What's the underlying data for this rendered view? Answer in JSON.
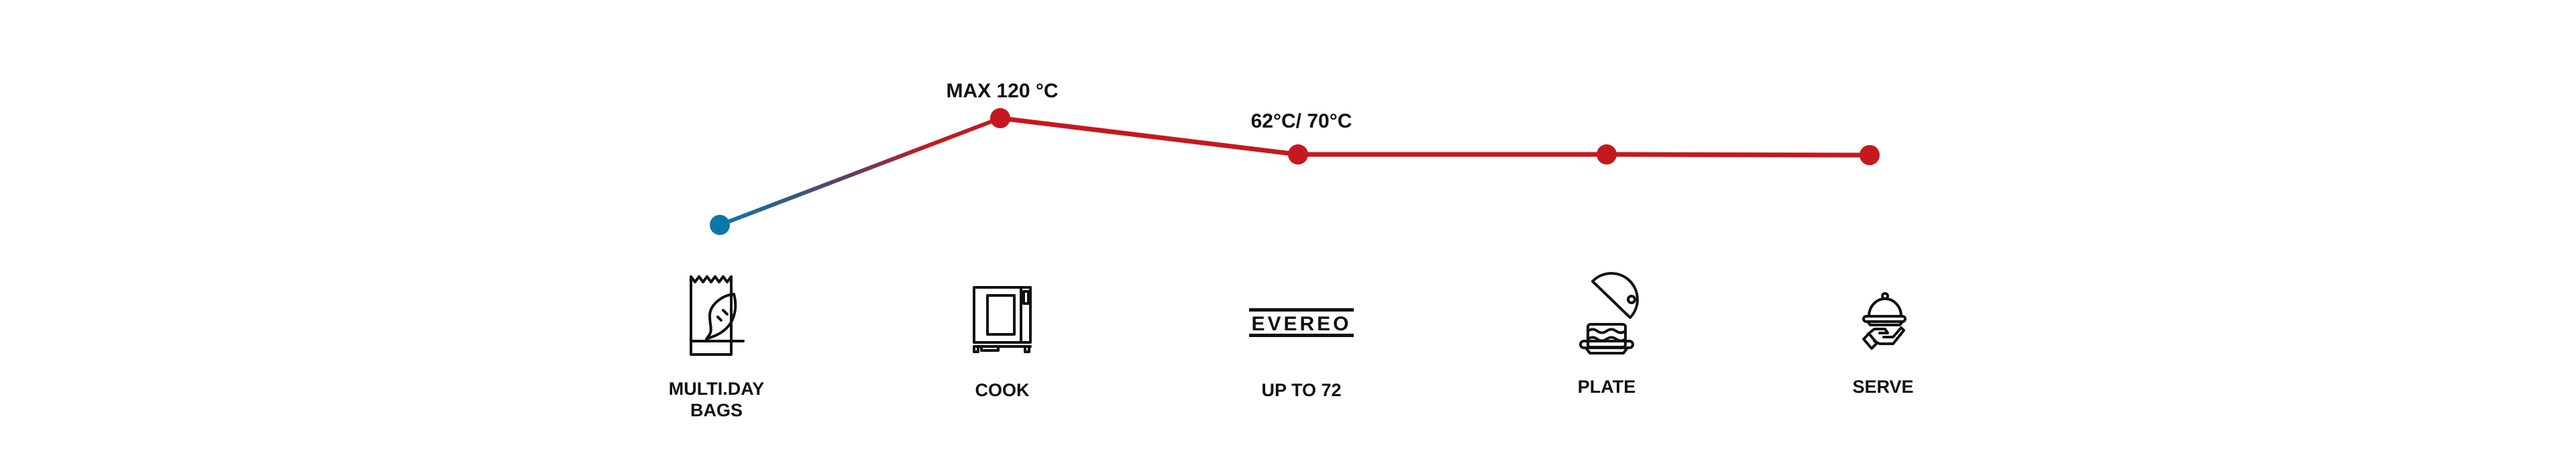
{
  "colors": {
    "cold": "#0a77a8",
    "hot": "#c4191e",
    "text": "#111111"
  },
  "annotations": [
    {
      "text": "MAX 120 °C",
      "step": 1
    },
    {
      "text": "62°C/ 70°C",
      "step": 2
    }
  ],
  "steps": [
    {
      "label_lines": [
        "MULTI.DAY",
        "BAGS"
      ],
      "icon": "fish-bag-icon",
      "point_color": "cold"
    },
    {
      "label_lines": [
        "COOK"
      ],
      "icon": "oven-icon",
      "point_color": "hot"
    },
    {
      "label_lines": [
        "UP TO 72"
      ],
      "icon": "evereo-logo",
      "icon_text": "EVEREO",
      "point_color": "hot"
    },
    {
      "label_lines": [
        "PLATE"
      ],
      "icon": "plate-cloche-icon",
      "point_color": "hot"
    },
    {
      "label_lines": [
        "SERVE"
      ],
      "icon": "serve-cloche-hand-icon",
      "point_color": "hot"
    }
  ]
}
